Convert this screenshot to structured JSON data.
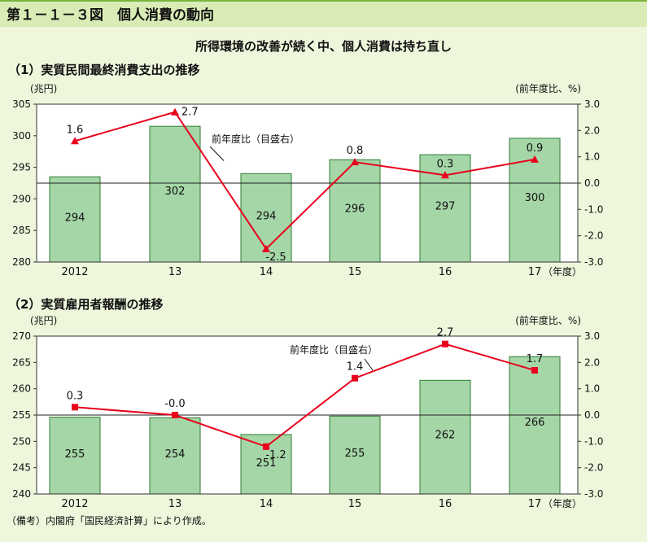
{
  "figure": {
    "title": "第１－１－３図　個人消費の動向",
    "headline": "所得環境の改善が続く中、個人消費は持ち直し",
    "note": "（備考）内閣府「国民経済計算」により作成。"
  },
  "colors": {
    "bar_fill": "#a5d6a7",
    "bar_stroke": "#2e7d32",
    "line": "#e8001c",
    "title_band": "#d9ecb5",
    "panel_bg": "#eef6dc"
  },
  "chart_data": [
    {
      "type": "bar",
      "section_title": "（1）実質民間最終消費支出の推移",
      "categories": [
        "2012",
        "13",
        "14",
        "15",
        "16",
        "17"
      ],
      "x_unit": "（年度）",
      "y_left_unit": "(兆円)",
      "y_right_unit": "(前年度比、%)",
      "y_left_ticks": [
        "305",
        "300",
        "295",
        "290",
        "285",
        "280"
      ],
      "y_right_ticks": [
        "3.0",
        "2.0",
        "1.0",
        "0.0",
        "-1.0",
        "-2.0",
        "-3.0"
      ],
      "ylim_left": [
        280,
        305
      ],
      "ylim_right": [
        -3,
        3
      ],
      "bars": {
        "values": [
          293.5,
          301.5,
          294.0,
          296.2,
          297.0,
          299.6
        ],
        "labels": [
          "294",
          "302",
          "294",
          "296",
          "297",
          "300"
        ]
      },
      "line": {
        "name": "前年度比（目盛右）",
        "marker": "triangle",
        "values": [
          1.6,
          2.7,
          -2.5,
          0.8,
          0.3,
          0.9
        ],
        "labels": [
          "1.6",
          "2.7",
          "-2.5",
          "0.8",
          "0.3",
          "0.9"
        ]
      }
    },
    {
      "type": "bar",
      "section_title": "（2）実質雇用者報酬の推移",
      "categories": [
        "2012",
        "13",
        "14",
        "15",
        "16",
        "17"
      ],
      "x_unit": "（年度）",
      "y_left_unit": "(兆円)",
      "y_right_unit": "(前年度比、%)",
      "y_left_ticks": [
        "270",
        "265",
        "260",
        "255",
        "250",
        "245",
        "240"
      ],
      "y_right_ticks": [
        "3.0",
        "2.0",
        "1.0",
        "0.0",
        "-1.0",
        "-2.0",
        "-3.0"
      ],
      "ylim_left": [
        240,
        270
      ],
      "ylim_right": [
        -3,
        3
      ],
      "bars": {
        "values": [
          254.6,
          254.5,
          251.3,
          254.8,
          261.6,
          266.1
        ],
        "labels": [
          "255",
          "254",
          "251",
          "255",
          "262",
          "266"
        ]
      },
      "line": {
        "name": "前年度比（目盛右）",
        "marker": "square",
        "values": [
          0.3,
          0.0,
          -1.2,
          1.4,
          2.7,
          1.7
        ],
        "labels": [
          "0.3",
          "-0.0",
          "-1.2",
          "1.4",
          "2.7",
          "1.7"
        ]
      }
    }
  ]
}
